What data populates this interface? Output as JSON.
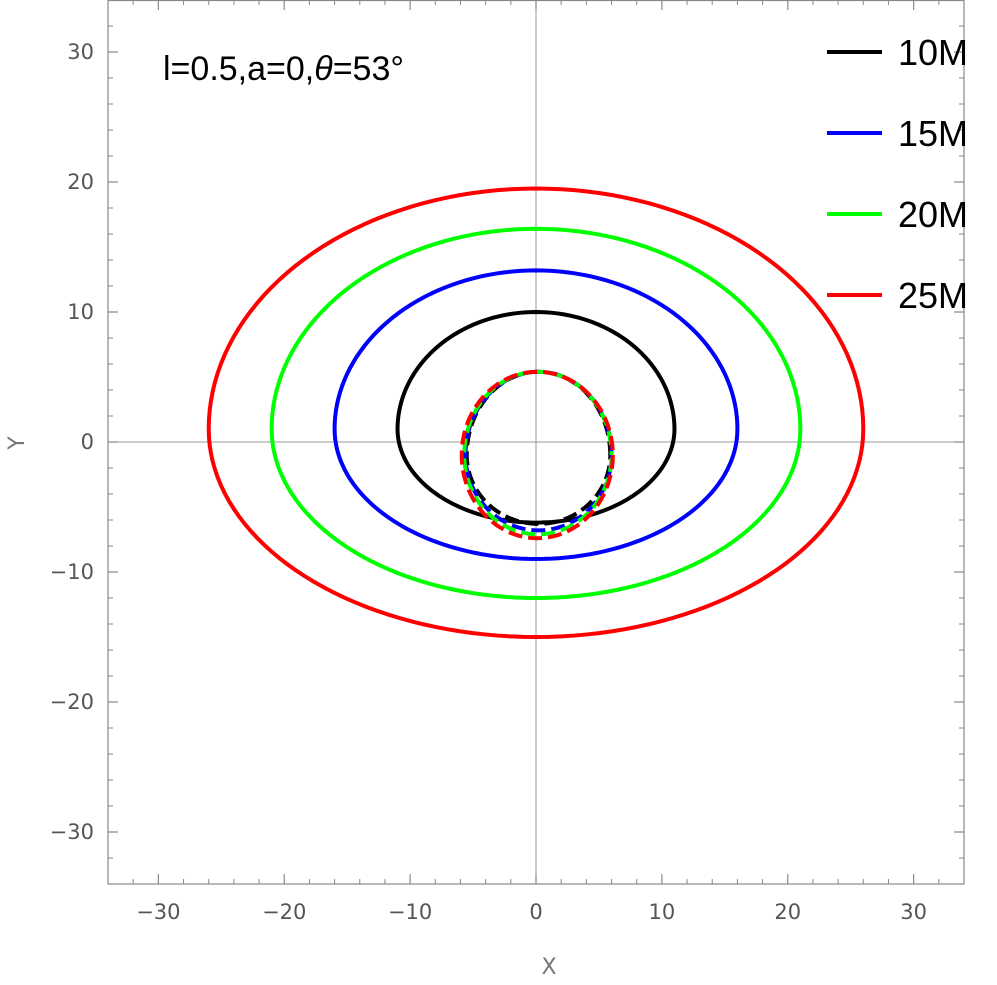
{
  "chart_data": {
    "type": "line",
    "title": "",
    "xlabel": "X",
    "ylabel": "Y",
    "xlim": [
      -34,
      34
    ],
    "ylim": [
      -34,
      34
    ],
    "xticks": [
      -30,
      -20,
      -10,
      0,
      10,
      20,
      30
    ],
    "yticks": [
      -30,
      -20,
      -10,
      0,
      10,
      20,
      30
    ],
    "xtick_labels": [
      "−30",
      "−20",
      "−10",
      "0",
      "10",
      "20",
      "30"
    ],
    "ytick_labels": [
      "−30",
      "−20",
      "−10",
      "0",
      "10",
      "20",
      "30"
    ],
    "annotation": {
      "text_prefix": "l=0.5,a=0,",
      "symbol": "θ",
      "text_suffix": "=53°"
    },
    "legend_position": "top-right",
    "grid": false,
    "origin_axes": true,
    "series": [
      {
        "name": "10M",
        "color": "#000000",
        "primary": {
          "x_left": -11,
          "x_right": 11,
          "y_top": 10,
          "y_bottom": -6.2,
          "y_widest": 1.0
        },
        "secondary": {
          "x_left": -5.5,
          "x_right": 5.9,
          "y_top": 5.4,
          "y_bottom": -6.3,
          "y_widest": -1.0
        }
      },
      {
        "name": "15M",
        "color": "#0000ff",
        "primary": {
          "x_left": -16,
          "x_right": 16,
          "y_top": 13.2,
          "y_bottom": -9,
          "y_widest": 1.0
        },
        "secondary": {
          "x_left": -5.6,
          "x_right": 6.0,
          "y_top": 5.4,
          "y_bottom": -6.8,
          "y_widest": -1.0
        }
      },
      {
        "name": "20M",
        "color": "#00ff00",
        "primary": {
          "x_left": -21,
          "x_right": 21,
          "y_top": 16.4,
          "y_bottom": -12,
          "y_widest": 1.0
        },
        "secondary": {
          "x_left": -5.7,
          "x_right": 6.0,
          "y_top": 5.4,
          "y_bottom": -7.1,
          "y_widest": -1.0
        }
      },
      {
        "name": "25M",
        "color": "#ff0000",
        "primary": {
          "x_left": -26,
          "x_right": 26,
          "y_top": 19.5,
          "y_bottom": -15,
          "y_widest": 1.0
        },
        "secondary": {
          "x_left": -5.9,
          "x_right": 6.1,
          "y_top": 5.4,
          "y_bottom": -7.4,
          "y_widest": -1.0
        }
      }
    ]
  }
}
